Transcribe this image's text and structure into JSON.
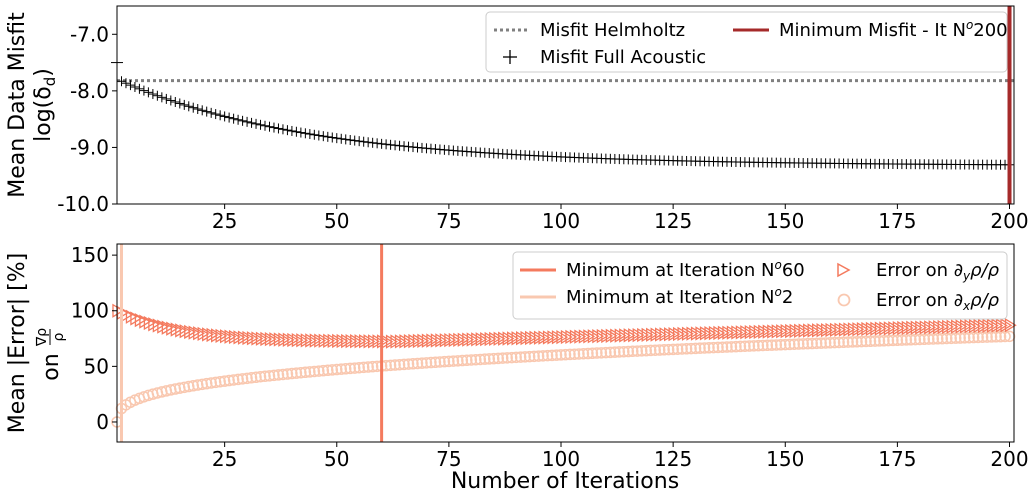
{
  "chart_data": [
    {
      "type": "scatter",
      "xlabel": "",
      "ylabel": "Mean Data Misfit",
      "ylabel2": "log(δd)",
      "xlim": [
        1,
        201
      ],
      "ylim": [
        -10.0,
        -6.5
      ],
      "xticks": [
        25,
        50,
        75,
        100,
        125,
        150,
        175,
        200
      ],
      "yticks": [
        -10.0,
        -9.0,
        -8.0,
        -7.0
      ],
      "ytick_labels": [
        "-10.0",
        "-9.0",
        "-8.0",
        "-7.0"
      ],
      "xtick_labels": [
        "25",
        "50",
        "75",
        "100",
        "125",
        "150",
        "175",
        "200"
      ],
      "legend_position": "top-right",
      "helmholtz_level": -7.82,
      "min_iteration": 200,
      "series": [
        {
          "name": "Misfit Helmholtz",
          "kind": "hline-dotted",
          "color": "#808080"
        },
        {
          "name": "Misfit Full Acoustic",
          "kind": "plus-markers",
          "color": "#000000",
          "x_range": [
            1,
            200
          ],
          "first_value": -7.5,
          "value_at_2": -7.85,
          "value_at_50": -8.65,
          "value_at_100": -9.03,
          "value_at_150": -9.15,
          "value_at_200": -9.22
        },
        {
          "name": "Minimum Misfit - It Nº200",
          "kind": "vline",
          "color": "#a52a2a",
          "x": 200
        }
      ]
    },
    {
      "type": "scatter",
      "xlabel": "Number of Iterations",
      "ylabel": "Mean |Error| [%]",
      "ylabel2": "on ∇ρ/ρ",
      "xlim": [
        1,
        201
      ],
      "ylim": [
        -18,
        160
      ],
      "xticks": [
        25,
        50,
        75,
        100,
        125,
        150,
        175,
        200
      ],
      "yticks": [
        0,
        50,
        100,
        150
      ],
      "xtick_labels": [
        "25",
        "50",
        "75",
        "100",
        "125",
        "150",
        "175",
        "200"
      ],
      "ytick_labels": [
        "0",
        "50",
        "100",
        "150"
      ],
      "legend_position": "top-right",
      "series": [
        {
          "name": "Minimum at Iteration Nº60",
          "kind": "vline",
          "color": "#f47a5e",
          "x": 60
        },
        {
          "name": "Minimum at Iteration Nº2",
          "kind": "vline",
          "color": "#f9c8b0",
          "x": 2
        },
        {
          "name": "Error on ∂yρ/ρ",
          "kind": "triangle-markers",
          "color": "#f47a5e",
          "x_range": [
            1,
            200
          ],
          "value_at_1": 100,
          "value_at_10": 90,
          "value_at_30": 78,
          "value_at_60": 72,
          "value_at_100": 75,
          "value_at_150": 80,
          "value_at_200": 87
        },
        {
          "name": "Error on ∂xρ/ρ",
          "kind": "circle-markers",
          "color": "#f9c8b0",
          "x_range": [
            1,
            200
          ],
          "value_at_1": 0,
          "value_at_10": 18,
          "value_at_30": 38,
          "value_at_60": 51,
          "value_at_100": 60,
          "value_at_150": 68,
          "value_at_200": 75
        }
      ]
    }
  ],
  "legend1": {
    "item1": "Misfit Helmholtz",
    "item2": "Minimum Misfit - It N",
    "item2_sup": "o",
    "item2_tail": "200",
    "item3": "Misfit Full Acoustic"
  },
  "legend2": {
    "item1": "Minimum at Iteration N",
    "item1_sup": "o",
    "item1_tail": "60",
    "item2": "Minimum at Iteration N",
    "item2_sup": "o",
    "item2_tail": "2",
    "item3_a": "Error on ∂",
    "item3_sub": "y",
    "item3_b": "ρ/ρ",
    "item4_a": "Error on ∂",
    "item4_sub": "x",
    "item4_b": "ρ/ρ"
  },
  "labels": {
    "top_ylabel": "Mean Data Misfit",
    "top_ylabel2_a": "log(δ",
    "top_ylabel2_sub": "d",
    "top_ylabel2_b": ")",
    "bottom_ylabel": "Mean |Error| [%]",
    "bottom_ylabel2_a": "on ",
    "bottom_ylabel2_num": "∇ρ",
    "bottom_ylabel2_den": "ρ",
    "xlabel": "Number of Iterations"
  }
}
